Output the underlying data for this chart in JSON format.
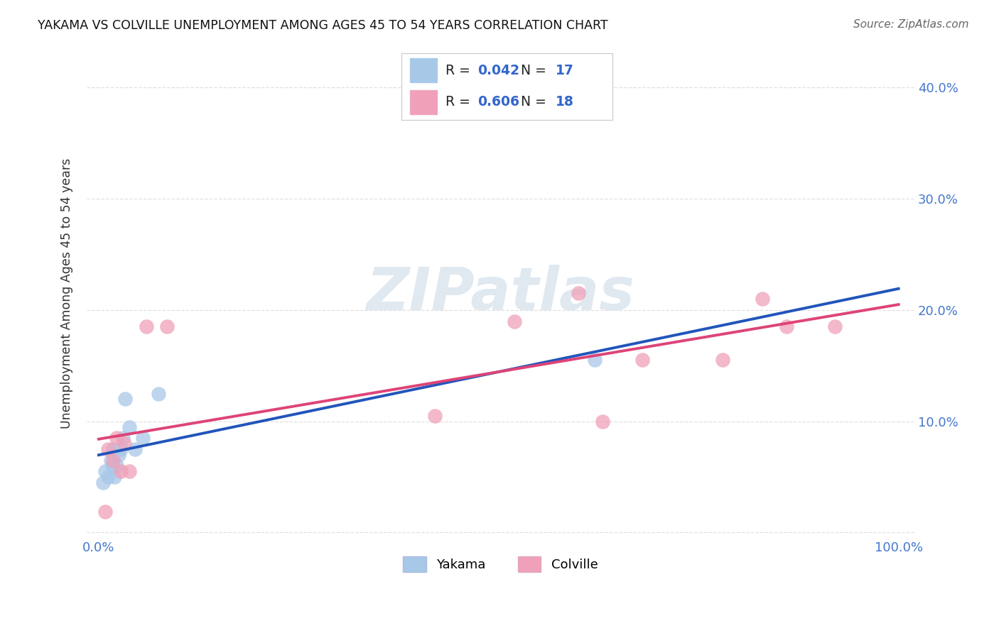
{
  "title": "YAKAMA VS COLVILLE UNEMPLOYMENT AMONG AGES 45 TO 54 YEARS CORRELATION CHART",
  "source": "Source: ZipAtlas.com",
  "ylabel_label": "Unemployment Among Ages 45 to 54 years",
  "xlim": [
    -0.015,
    1.02
  ],
  "ylim": [
    -0.005,
    0.435
  ],
  "yticks": [
    0.0,
    0.1,
    0.2,
    0.3,
    0.4
  ],
  "ytick_labels_right": [
    "",
    "10.0%",
    "20.0%",
    "30.0%",
    "40.0%"
  ],
  "xticks": [
    0.0,
    0.1,
    0.2,
    0.3,
    0.4,
    0.5,
    0.6,
    0.7,
    0.8,
    0.9,
    1.0
  ],
  "xtick_labels": [
    "0.0%",
    "",
    "",
    "",
    "",
    "",
    "",
    "",
    "",
    "",
    "100.0%"
  ],
  "yakama_R": "0.042",
  "yakama_N": "17",
  "colville_R": "0.606",
  "colville_N": "18",
  "yakama_scatter_color": "#A8C8E8",
  "colville_scatter_color": "#F0A0B8",
  "yakama_line_color": "#2255BB",
  "colville_line_color": "#DD4477",
  "yakama_dashed_color": "#6699CC",
  "tick_color": "#4477CC",
  "watermark_color": "#E0E8F0",
  "grid_color": "#DDDDDD",
  "yakama_x": [
    0.005,
    0.008,
    0.012,
    0.015,
    0.017,
    0.018,
    0.02,
    0.022,
    0.025,
    0.028,
    0.03,
    0.033,
    0.038,
    0.045,
    0.055,
    0.075,
    0.62
  ],
  "yakama_y": [
    0.045,
    0.055,
    0.05,
    0.065,
    0.06,
    0.075,
    0.05,
    0.06,
    0.07,
    0.075,
    0.085,
    0.12,
    0.095,
    0.075,
    0.085,
    0.125,
    0.155
  ],
  "colville_x": [
    0.008,
    0.012,
    0.018,
    0.022,
    0.028,
    0.032,
    0.038,
    0.06,
    0.085,
    0.42,
    0.52,
    0.6,
    0.63,
    0.68,
    0.78,
    0.83,
    0.86,
    0.92
  ],
  "colville_y": [
    0.019,
    0.075,
    0.065,
    0.085,
    0.055,
    0.08,
    0.055,
    0.185,
    0.185,
    0.105,
    0.19,
    0.215,
    0.1,
    0.155,
    0.155,
    0.21,
    0.185,
    0.185
  ],
  "bottom_legend_yakama": "Yakama",
  "bottom_legend_colville": "Colville"
}
